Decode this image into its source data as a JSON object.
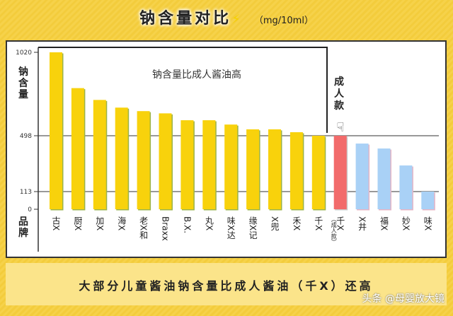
{
  "title": "钠含量对比",
  "unit": "（mg/10ml）",
  "footer": "大部分儿童酱油钠含量比成人酱油（千X）还高",
  "watermark": "头条 @母婴放大镜",
  "colors": {
    "child": "#f8d20c",
    "adult": "#f26b6b",
    "lower": "#a9d1f6",
    "background": "#f6d24a"
  },
  "chart_data": {
    "type": "bar",
    "title": "钠含量对比",
    "ylabel": "钠含量",
    "xlabel": "品牌",
    "yticks": [
      0,
      113,
      498,
      1020
    ],
    "reference_lines": [
      113,
      498
    ],
    "ylim": [
      0,
      1020
    ],
    "annotation": "钠含量比成人酱油高",
    "adult_label": "成人款",
    "categories": [
      "古X",
      "厨X",
      "加X",
      "海X",
      "老X和",
      "Braxx",
      "B.X.",
      "丸X",
      "味X达",
      "缘X记",
      "X兜",
      "禾X",
      "千X",
      "千X（成人款）",
      "X井",
      "福X",
      "妙X",
      "味X"
    ],
    "values": [
      1020,
      796,
      722,
      674,
      652,
      638,
      595,
      595,
      568,
      538,
      538,
      520,
      498,
      498,
      444,
      410,
      293,
      113
    ],
    "groups": [
      "child",
      "child",
      "child",
      "child",
      "child",
      "child",
      "child",
      "child",
      "child",
      "child",
      "child",
      "child",
      "child",
      "adult",
      "lower",
      "lower",
      "lower",
      "lower"
    ]
  }
}
